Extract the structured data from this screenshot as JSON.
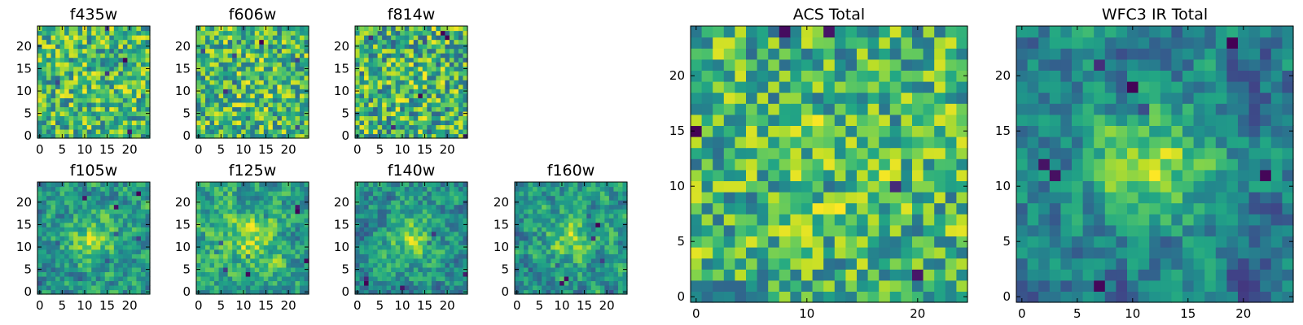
{
  "chart_data": {
    "type": "heatmap",
    "colormap": "viridis",
    "grid": false,
    "panels": [
      {
        "title": "f435w",
        "seed": 11,
        "center_strength": 0.05,
        "blur": 0.0,
        "dark_spots": 6,
        "xlim": [
          0,
          24
        ],
        "ylim": [
          0,
          24
        ],
        "xticks": [
          0,
          5,
          10,
          15,
          20
        ],
        "yticks": [
          0,
          5,
          10,
          15,
          20
        ]
      },
      {
        "title": "f606w",
        "seed": 23,
        "center_strength": 0.08,
        "blur": 0.0,
        "dark_spots": 10,
        "xlim": [
          0,
          24
        ],
        "ylim": [
          0,
          24
        ],
        "xticks": [
          0,
          5,
          10,
          15,
          20
        ],
        "yticks": [
          0,
          5,
          10,
          15,
          20
        ]
      },
      {
        "title": "f814w",
        "seed": 37,
        "center_strength": 0.06,
        "blur": 0.0,
        "dark_spots": 12,
        "xlim": [
          0,
          24
        ],
        "ylim": [
          0,
          24
        ],
        "xticks": [
          0,
          5,
          10,
          15,
          20
        ],
        "yticks": [
          0,
          5,
          10,
          15,
          20
        ]
      },
      {
        "title": "f105w",
        "seed": 41,
        "center_strength": 0.45,
        "blur": 0.5,
        "dark_spots": 7,
        "xlim": [
          0,
          24
        ],
        "ylim": [
          0,
          24
        ],
        "xticks": [
          0,
          5,
          10,
          15,
          20
        ],
        "yticks": [
          0,
          5,
          10,
          15,
          20
        ]
      },
      {
        "title": "f125w",
        "seed": 53,
        "center_strength": 0.35,
        "blur": 0.5,
        "dark_spots": 9,
        "xlim": [
          0,
          24
        ],
        "ylim": [
          0,
          24
        ],
        "xticks": [
          0,
          5,
          10,
          15,
          20
        ],
        "yticks": [
          0,
          5,
          10,
          15,
          20
        ]
      },
      {
        "title": "f140w",
        "seed": 67,
        "center_strength": 0.45,
        "blur": 0.5,
        "dark_spots": 6,
        "xlim": [
          0,
          24
        ],
        "ylim": [
          0,
          24
        ],
        "xticks": [
          0,
          5,
          10,
          15,
          20
        ],
        "yticks": [
          0,
          5,
          10,
          15,
          20
        ]
      },
      {
        "title": "f160w",
        "seed": 79,
        "center_strength": 0.4,
        "blur": 0.5,
        "dark_spots": 7,
        "xlim": [
          0,
          24
        ],
        "ylim": [
          0,
          24
        ],
        "xticks": [
          0,
          5,
          10,
          15,
          20
        ],
        "yticks": [
          0,
          5,
          10,
          15,
          20
        ]
      },
      {
        "title": "ACS Total",
        "seed": 97,
        "center_strength": 0.1,
        "blur": 0.15,
        "dark_spots": 6,
        "xlim": [
          0,
          24
        ],
        "ylim": [
          0,
          24
        ],
        "xticks": [
          0,
          10,
          20
        ],
        "yticks": [
          0,
          5,
          10,
          15,
          20
        ]
      },
      {
        "title": "WFC3 IR Total",
        "seed": 131,
        "center_strength": 0.6,
        "blur": 0.55,
        "dark_spots": 8,
        "xlim": [
          0,
          24
        ],
        "ylim": [
          0,
          24
        ],
        "xticks": [
          0,
          5,
          10,
          15,
          20
        ],
        "yticks": [
          0,
          5,
          10,
          15,
          20
        ]
      }
    ]
  }
}
